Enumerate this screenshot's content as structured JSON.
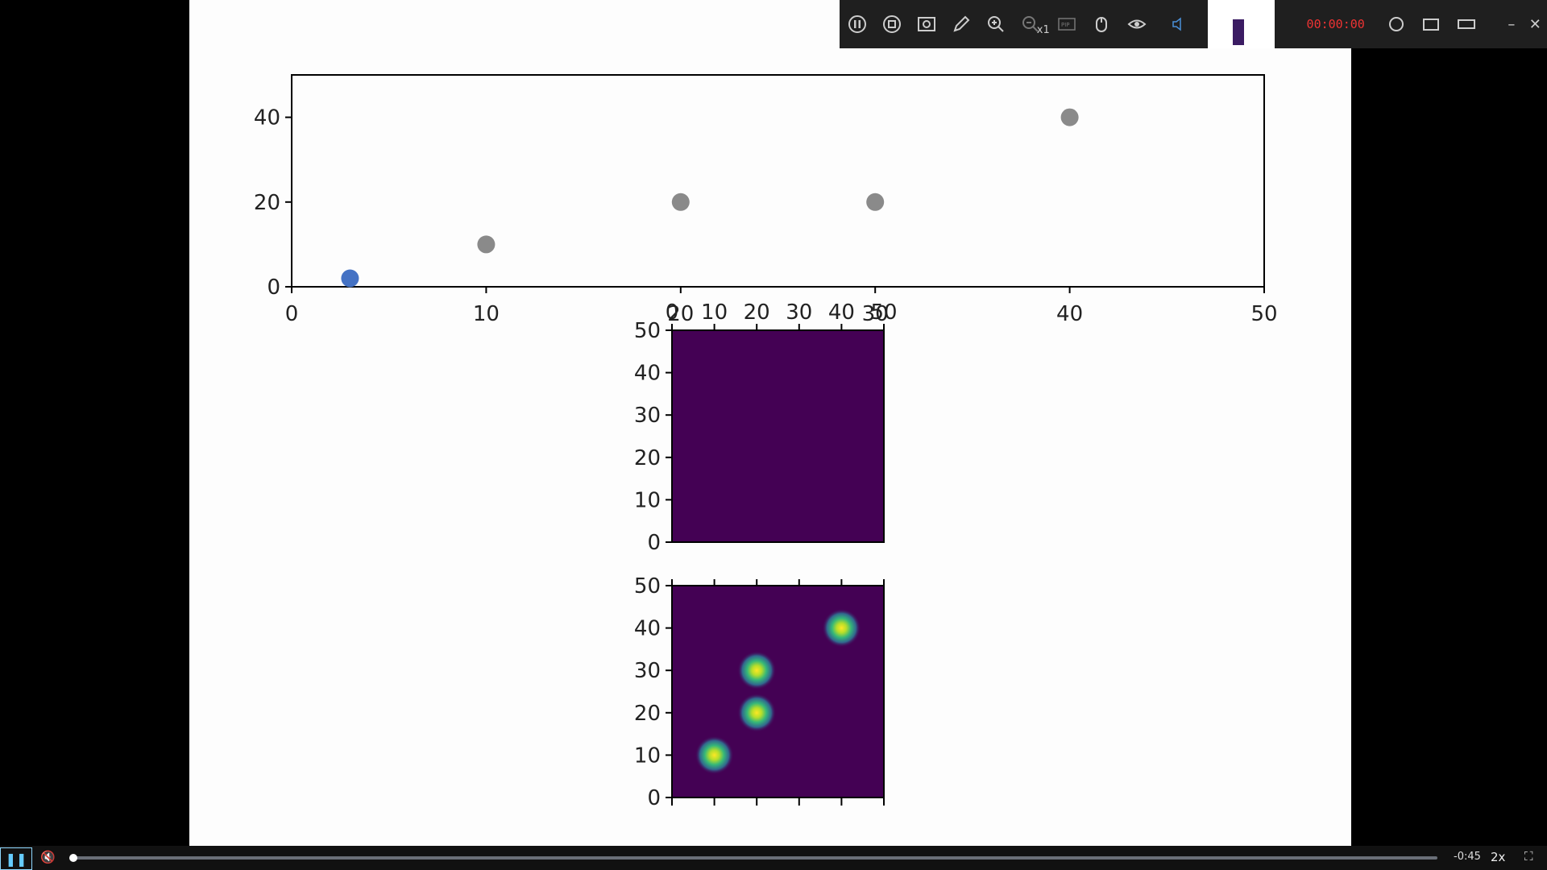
{
  "toolbar": {
    "icons": [
      "pause-icon",
      "stop-icon",
      "screenshot-icon",
      "pen-icon",
      "zoom-in-icon",
      "zoom-out-icon",
      "pip-icon",
      "mouse-icon",
      "eye-icon",
      "speaker-icon"
    ],
    "zoom_multiplier": "x1",
    "pip_label": "PIP",
    "timer": "00:00:00"
  },
  "player": {
    "time_remaining": "-0:45",
    "speed": "2x",
    "progress": 0.002
  },
  "colors": {
    "point_gray": "#8a8a8a",
    "point_blue": "#4472c4",
    "heatmap_bg": "#440154"
  },
  "chart_data": [
    {
      "type": "scatter",
      "xlim": [
        0,
        50
      ],
      "ylim": [
        0,
        50
      ],
      "x_ticks": [
        "0",
        "10",
        "20",
        "30",
        "40",
        "50"
      ],
      "y_ticks": [
        "0",
        "20",
        "40"
      ],
      "points": [
        {
          "x": 3,
          "y": 2,
          "color": "blue"
        },
        {
          "x": 10,
          "y": 10,
          "color": "gray"
        },
        {
          "x": 20,
          "y": 20,
          "color": "gray"
        },
        {
          "x": 30,
          "y": 20,
          "color": "gray"
        },
        {
          "x": 40,
          "y": 40,
          "color": "gray"
        }
      ]
    },
    {
      "type": "heatmap",
      "xlim": [
        0,
        50
      ],
      "ylim": [
        0,
        50
      ],
      "x_ticks": [
        "0",
        "10",
        "20",
        "30",
        "40",
        "50"
      ],
      "y_ticks": [
        "0",
        "10",
        "20",
        "30",
        "40",
        "50"
      ],
      "spots": []
    },
    {
      "type": "heatmap",
      "xlim": [
        0,
        50
      ],
      "ylim": [
        0,
        50
      ],
      "x_ticks": [],
      "y_ticks": [
        "0",
        "10",
        "20",
        "30",
        "40",
        "50"
      ],
      "spots": [
        {
          "x": 10,
          "y": 10
        },
        {
          "x": 20,
          "y": 20
        },
        {
          "x": 20,
          "y": 30
        },
        {
          "x": 40,
          "y": 40
        }
      ]
    }
  ]
}
